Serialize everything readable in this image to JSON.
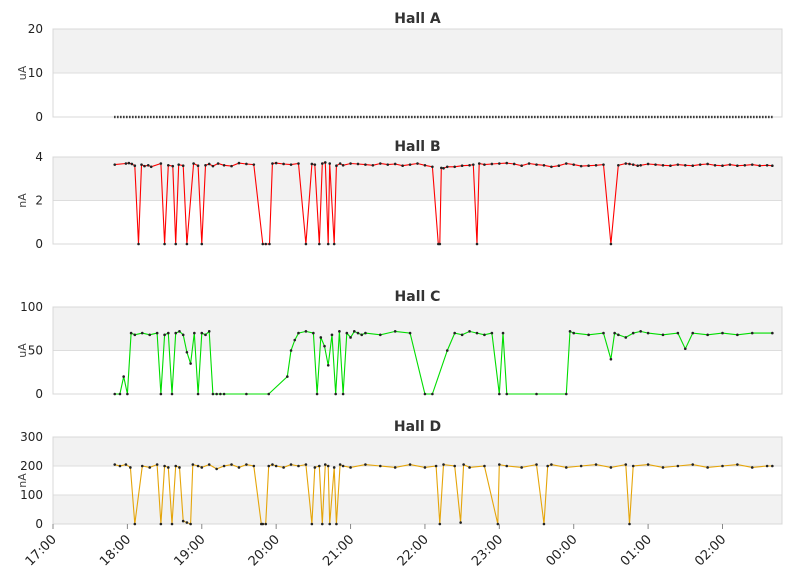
{
  "chart_data": [
    {
      "type": "line",
      "title": "Hall A",
      "ylabel": "uA",
      "ylim": [
        0,
        20
      ],
      "yticks": [
        0,
        10,
        20
      ],
      "grid": true,
      "color": "#000000",
      "series": [
        {
          "x": [
            17.83,
            21.25,
            24.83,
            26.67
          ],
          "values": [
            0,
            0,
            0,
            0
          ]
        }
      ]
    },
    {
      "type": "line",
      "title": "Hall B",
      "ylabel": "nA",
      "ylim": [
        0,
        4
      ],
      "yticks": [
        0,
        2,
        4
      ],
      "grid": true,
      "color": "#ff0000",
      "series": [
        {
          "x": [
            17.83,
            17.98,
            18.02,
            18.06,
            18.1,
            18.15,
            18.19,
            18.23,
            18.28,
            18.32,
            18.45,
            18.5,
            18.55,
            18.61,
            18.65,
            18.69,
            18.75,
            18.8,
            18.89,
            18.95,
            19.0,
            19.05,
            19.1,
            19.15,
            19.22,
            19.3,
            19.4,
            19.5,
            19.6,
            19.7,
            19.82,
            19.86,
            19.91,
            19.95,
            20.0,
            20.1,
            20.2,
            20.3,
            20.4,
            20.48,
            20.52,
            20.58,
            20.62,
            20.66,
            20.7,
            20.72,
            20.78,
            20.81,
            20.86,
            20.9,
            21.0,
            21.1,
            21.2,
            21.3,
            21.4,
            21.5,
            21.6,
            21.7,
            21.8,
            21.9,
            22.0,
            22.1,
            22.18,
            22.2,
            22.22,
            22.25,
            22.3,
            22.4,
            22.5,
            22.6,
            22.65,
            22.7,
            22.73,
            22.8,
            22.9,
            23.0,
            23.1,
            23.2,
            23.3,
            23.4,
            23.5,
            23.6,
            23.7,
            23.8,
            23.9,
            24.0,
            24.1,
            24.2,
            24.3,
            24.4,
            24.5,
            24.6,
            24.7,
            24.75,
            24.8,
            24.86,
            24.9,
            25.0,
            25.1,
            25.2,
            25.3,
            25.4,
            25.5,
            25.6,
            25.7,
            25.8,
            25.9,
            26.0,
            26.1,
            26.2,
            26.3,
            26.4,
            26.5,
            26.6,
            26.67
          ],
          "values": [
            3.65,
            3.7,
            3.72,
            3.68,
            3.6,
            0,
            3.65,
            3.58,
            3.62,
            3.55,
            3.7,
            0,
            3.62,
            3.58,
            0,
            3.65,
            3.6,
            0,
            3.7,
            3.6,
            0,
            3.62,
            3.68,
            3.58,
            3.7,
            3.62,
            3.58,
            3.72,
            3.68,
            3.65,
            0,
            0,
            0,
            3.7,
            3.72,
            3.68,
            3.65,
            3.7,
            0,
            3.68,
            3.65,
            0,
            3.7,
            3.75,
            0,
            3.7,
            0,
            3.6,
            3.7,
            3.62,
            3.7,
            3.68,
            3.65,
            3.62,
            3.7,
            3.65,
            3.68,
            3.6,
            3.65,
            3.7,
            3.62,
            3.55,
            0,
            0,
            3.5,
            3.48,
            3.55,
            3.55,
            3.6,
            3.62,
            3.65,
            0,
            3.7,
            3.65,
            3.68,
            3.7,
            3.72,
            3.68,
            3.6,
            3.7,
            3.65,
            3.62,
            3.55,
            3.6,
            3.7,
            3.65,
            3.58,
            3.6,
            3.62,
            3.65,
            0,
            3.62,
            3.7,
            3.68,
            3.65,
            3.6,
            3.62,
            3.68,
            3.65,
            3.62,
            3.6,
            3.65,
            3.62,
            3.6,
            3.65,
            3.68,
            3.62,
            3.6,
            3.65,
            3.6,
            3.62,
            3.65,
            3.6,
            3.62,
            3.6
          ]
        }
      ]
    },
    {
      "type": "line",
      "title": "Hall C",
      "ylabel": "uA",
      "ylim": [
        0,
        100
      ],
      "yticks": [
        0,
        50,
        100
      ],
      "grid": true,
      "color": "#00dd00",
      "series": [
        {
          "x": [
            17.83,
            17.9,
            17.95,
            18.0,
            18.05,
            18.1,
            18.2,
            18.3,
            18.4,
            18.45,
            18.5,
            18.55,
            18.6,
            18.65,
            18.7,
            18.75,
            18.8,
            18.85,
            18.9,
            18.95,
            19.0,
            19.05,
            19.1,
            19.15,
            19.2,
            19.25,
            19.3,
            19.6,
            19.9,
            20.15,
            20.2,
            20.25,
            20.3,
            20.4,
            20.5,
            20.55,
            20.6,
            20.65,
            20.7,
            20.75,
            20.8,
            20.85,
            20.9,
            20.95,
            21.0,
            21.05,
            21.1,
            21.15,
            21.2,
            21.4,
            21.6,
            21.8,
            22.0,
            22.1,
            22.3,
            22.4,
            22.5,
            22.6,
            22.7,
            22.8,
            22.9,
            23.0,
            23.05,
            23.1,
            23.5,
            23.9,
            23.95,
            24.0,
            24.2,
            24.4,
            24.5,
            24.55,
            24.6,
            24.7,
            24.8,
            24.9,
            25.0,
            25.2,
            25.4,
            25.5,
            25.6,
            25.8,
            26.0,
            26.2,
            26.4,
            26.67
          ],
          "values": [
            0,
            0,
            20,
            0,
            70,
            68,
            70,
            68,
            70,
            0,
            68,
            70,
            0,
            70,
            72,
            68,
            48,
            35,
            70,
            0,
            70,
            68,
            72,
            0,
            0,
            0,
            0,
            0,
            0,
            20,
            50,
            62,
            70,
            72,
            70,
            0,
            65,
            55,
            33,
            68,
            0,
            72,
            0,
            70,
            65,
            72,
            70,
            68,
            70,
            68,
            72,
            70,
            0,
            0,
            50,
            70,
            68,
            72,
            70,
            68,
            70,
            0,
            70,
            0,
            0,
            0,
            72,
            70,
            68,
            70,
            40,
            70,
            68,
            65,
            70,
            72,
            70,
            68,
            70,
            52,
            70,
            68,
            70,
            68,
            70,
            70
          ]
        }
      ]
    },
    {
      "type": "line",
      "title": "Hall D",
      "ylabel": "nA",
      "ylim": [
        0,
        300
      ],
      "yticks": [
        0,
        100,
        200,
        300
      ],
      "grid": true,
      "color": "#e5a50a",
      "series": [
        {
          "x": [
            17.83,
            17.9,
            17.98,
            18.04,
            18.1,
            18.2,
            18.3,
            18.4,
            18.45,
            18.5,
            18.55,
            18.6,
            18.65,
            18.7,
            18.75,
            18.8,
            18.85,
            18.88,
            18.95,
            19.0,
            19.1,
            19.2,
            19.3,
            19.4,
            19.5,
            19.6,
            19.7,
            19.8,
            19.82,
            19.86,
            19.9,
            19.95,
            20.0,
            20.1,
            20.2,
            20.3,
            20.4,
            20.48,
            20.52,
            20.58,
            20.62,
            20.66,
            20.7,
            20.72,
            20.78,
            20.81,
            20.86,
            20.9,
            21.0,
            21.2,
            21.4,
            21.6,
            21.8,
            22.0,
            22.15,
            22.2,
            22.25,
            22.4,
            22.48,
            22.52,
            22.6,
            22.8,
            22.98,
            23.0,
            23.1,
            23.3,
            23.5,
            23.6,
            23.65,
            23.7,
            23.9,
            24.1,
            24.3,
            24.5,
            24.7,
            24.75,
            24.8,
            25.0,
            25.2,
            25.4,
            25.6,
            25.8,
            26.0,
            26.2,
            26.4,
            26.6,
            26.67
          ],
          "values": [
            205,
            200,
            205,
            195,
            0,
            200,
            195,
            205,
            0,
            200,
            195,
            0,
            200,
            195,
            10,
            5,
            0,
            205,
            200,
            195,
            205,
            190,
            200,
            205,
            195,
            205,
            200,
            0,
            0,
            0,
            200,
            205,
            200,
            195,
            205,
            200,
            205,
            0,
            195,
            200,
            0,
            205,
            200,
            0,
            195,
            0,
            205,
            200,
            195,
            205,
            200,
            195,
            205,
            195,
            200,
            0,
            205,
            200,
            5,
            205,
            195,
            200,
            0,
            205,
            200,
            195,
            205,
            0,
            200,
            205,
            195,
            200,
            205,
            195,
            205,
            0,
            200,
            205,
            195,
            200,
            205,
            195,
            200,
            205,
            195,
            200,
            200
          ]
        }
      ]
    }
  ],
  "x_axis": {
    "range": [
      17,
      26.8
    ],
    "ticks": [
      {
        "value": 17,
        "label": "17:00"
      },
      {
        "value": 18,
        "label": "18:00"
      },
      {
        "value": 19,
        "label": "19:00"
      },
      {
        "value": 20,
        "label": "20:00"
      },
      {
        "value": 21,
        "label": "21:00"
      },
      {
        "value": 22,
        "label": "22:00"
      },
      {
        "value": 23,
        "label": "23:00"
      },
      {
        "value": 24,
        "label": "00:00"
      },
      {
        "value": 25,
        "label": "01:00"
      },
      {
        "value": 26,
        "label": "02:00"
      }
    ]
  }
}
